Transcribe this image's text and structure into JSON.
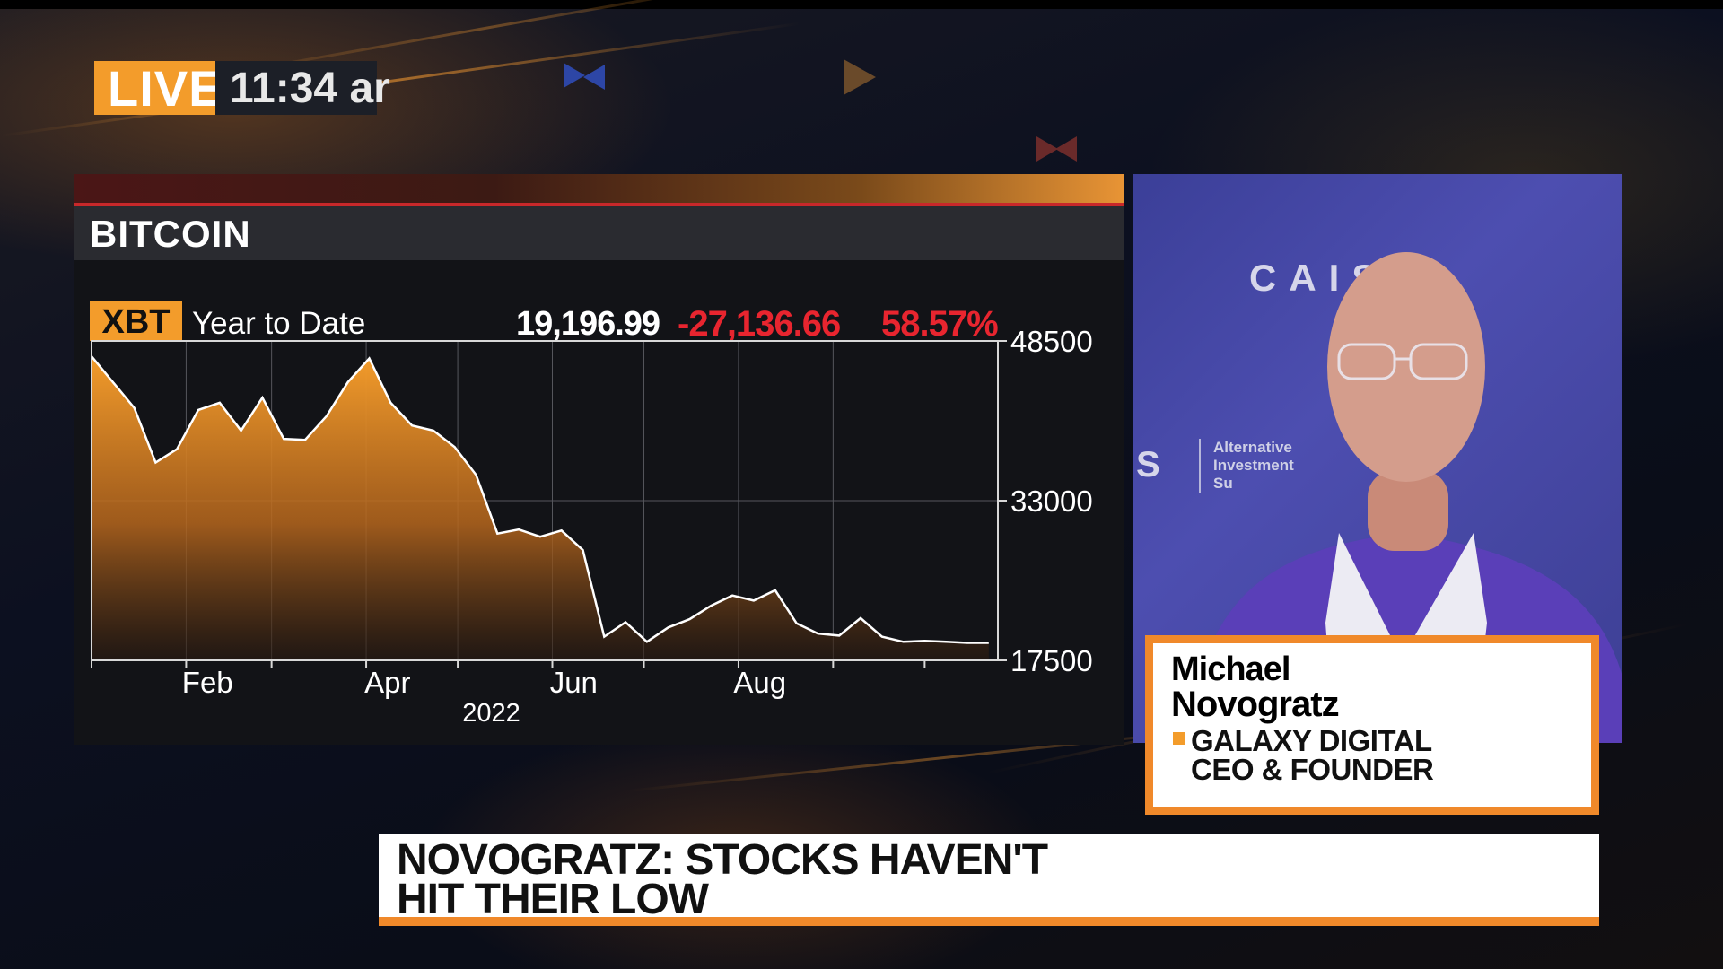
{
  "live_bug": {
    "label": "LIVE",
    "time": "11:34 ar"
  },
  "chart_panel": {
    "title": "BITCOIN",
    "ticker": "XBT",
    "period": "Year to Date",
    "price": "19,196.99",
    "change": "-27,136.66",
    "change_pct": "58.57%"
  },
  "video": {
    "backdrop_logo": "CAIS",
    "backdrop_s": "S",
    "backdrop_sub": [
      "Alternative",
      "Investment",
      "Su"
    ]
  },
  "lower_third": {
    "first_name": "Michael",
    "last_name": "Novogratz",
    "title_line1": "GALAXY DIGITAL",
    "title_line2": "CEO & FOUNDER"
  },
  "headline": {
    "line1": "NOVOGRATZ: STOCKS HAVEN'T",
    "line2": "HIT THEIR LOW"
  },
  "colors": {
    "accent_orange": "#f39c2b",
    "negative_red": "#e8252f",
    "chart_fill_top": "#f39c2b",
    "video_bg": "#4547a6"
  },
  "chart_data": {
    "type": "area",
    "title": "BITCOIN",
    "series": [
      {
        "name": "XBT",
        "x": [
          "2022-01-01",
          "2022-01-08",
          "2022-01-15",
          "2022-01-22",
          "2022-01-29",
          "2022-02-05",
          "2022-02-12",
          "2022-02-19",
          "2022-02-26",
          "2022-03-05",
          "2022-03-12",
          "2022-03-19",
          "2022-03-26",
          "2022-04-02",
          "2022-04-09",
          "2022-04-16",
          "2022-04-23",
          "2022-04-30",
          "2022-05-07",
          "2022-05-14",
          "2022-05-21",
          "2022-05-28",
          "2022-06-04",
          "2022-06-11",
          "2022-06-18",
          "2022-06-25",
          "2022-07-02",
          "2022-07-09",
          "2022-07-16",
          "2022-07-23",
          "2022-07-30",
          "2022-08-06",
          "2022-08-13",
          "2022-08-20",
          "2022-08-27",
          "2022-09-03",
          "2022-09-10",
          "2022-09-17",
          "2022-09-24",
          "2022-10-01",
          "2022-10-08",
          "2022-10-15",
          "2022-10-22"
        ],
        "values": [
          47000,
          44500,
          42000,
          36700,
          38000,
          41800,
          42500,
          39800,
          43000,
          39000,
          38900,
          41200,
          44500,
          46800,
          42500,
          40300,
          39800,
          38200,
          35500,
          29800,
          30200,
          29500,
          30100,
          28200,
          19800,
          21200,
          19300,
          20700,
          21500,
          22800,
          23800,
          23300,
          24300,
          21100,
          20100,
          19900,
          21600,
          19800,
          19300,
          19400,
          19300,
          19200,
          19197
        ],
        "color": "#f39c2b"
      }
    ],
    "x_tick_labels": [
      "Feb",
      "Apr",
      "Jun",
      "Aug"
    ],
    "x_year_label": "2022",
    "y_tick_labels": [
      "48500",
      "33000",
      "17500"
    ],
    "ylim": [
      17500,
      48500
    ],
    "grid": true,
    "y_axis_side": "right"
  }
}
